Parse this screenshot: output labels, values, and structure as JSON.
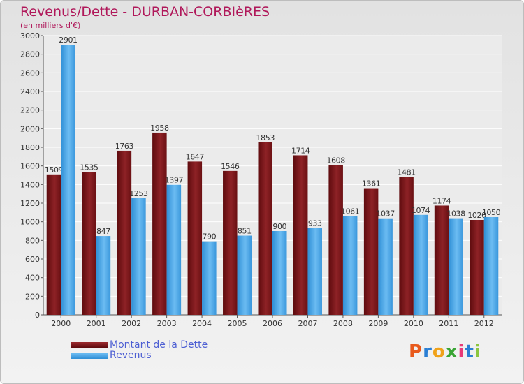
{
  "chart_data": {
    "type": "bar",
    "title": "Revenus/Dette - DURBAN-CORBIèRES",
    "subtitle": "(en milliers d'€)",
    "categories": [
      "2000",
      "2001",
      "2002",
      "2003",
      "2004",
      "2005",
      "2006",
      "2007",
      "2008",
      "2009",
      "2010",
      "2011",
      "2012"
    ],
    "series": [
      {
        "name": "Montant de la Dette",
        "color": "#7a1518",
        "values": [
          1509,
          1535,
          1763,
          1958,
          1647,
          1546,
          1853,
          1714,
          1608,
          1361,
          1481,
          1174,
          1020
        ]
      },
      {
        "name": "Revenus",
        "color": "#3f9ee0",
        "values": [
          2901,
          847,
          1253,
          1397,
          790,
          851,
          900,
          933,
          1061,
          1037,
          1074,
          1038,
          1050
        ]
      }
    ],
    "ylim": [
      0,
      3000
    ],
    "yticks": [
      0,
      200,
      400,
      600,
      800,
      1000,
      1200,
      1400,
      1600,
      1800,
      2000,
      2200,
      2400,
      2600,
      2800,
      3000
    ],
    "grid": true,
    "legend": "bottom-left"
  },
  "logo": {
    "letters": [
      "P",
      "r",
      "o",
      "x",
      "i",
      "t",
      "i"
    ],
    "colors": [
      "#e85a1c",
      "#2a7fd4",
      "#f0a21a",
      "#3aa535",
      "#e83a78",
      "#2a7fd4",
      "#8cc63f"
    ]
  }
}
